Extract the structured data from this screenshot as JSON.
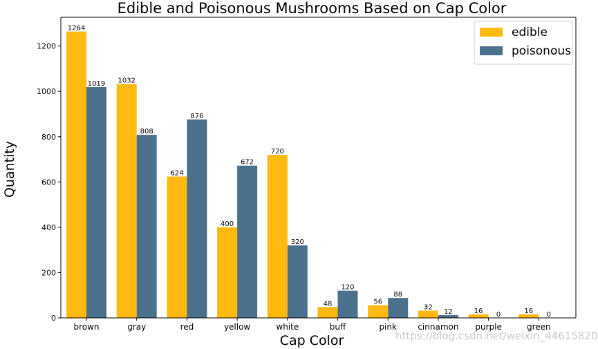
{
  "chart_data": {
    "type": "bar",
    "title": "Edible and Poisonous Mushrooms Based on Cap Color",
    "xlabel": "Cap Color",
    "ylabel": "Quantity",
    "categories": [
      "brown",
      "gray",
      "red",
      "yellow",
      "white",
      "buff",
      "pink",
      "cinnamon",
      "purple",
      "green"
    ],
    "series": [
      {
        "name": "edible",
        "color": "#ffb90f",
        "values": [
          1264,
          1032,
          624,
          400,
          720,
          48,
          56,
          32,
          16,
          16
        ]
      },
      {
        "name": "poisonous",
        "color": "#4a708b",
        "values": [
          1019,
          808,
          876,
          672,
          320,
          120,
          88,
          12,
          0,
          0
        ]
      }
    ],
    "yticks": [
      0,
      200,
      400,
      600,
      800,
      1000,
      1200
    ],
    "ylim": [
      0,
      1327
    ],
    "grid": false,
    "legend_position": "top-right"
  },
  "watermark": "https://blog.csdn.net/weixin_44615820"
}
